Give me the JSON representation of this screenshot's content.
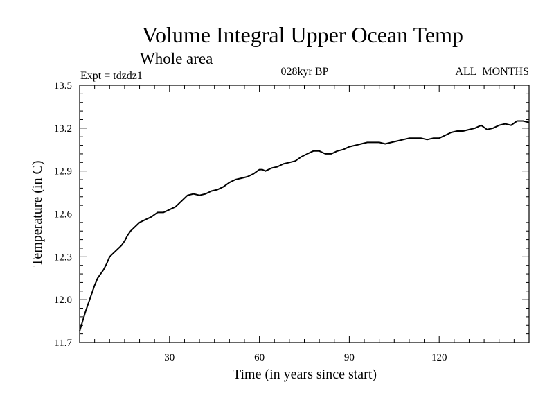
{
  "chart_data": {
    "type": "line",
    "title": "Volume Integral Upper Ocean Temp",
    "subtitle": "Whole area",
    "experiment": "Expt = tdzdz1",
    "period": "028kyr BP",
    "months": "ALL_MONTHS",
    "xlabel": "Time (in years since start)",
    "ylabel": "Temperature (in C)",
    "xlim": [
      0,
      150
    ],
    "ylim": [
      11.7,
      13.5
    ],
    "x_ticks": [
      30,
      60,
      90,
      120
    ],
    "x_tick_labels": [
      "30",
      "60",
      "90",
      "120"
    ],
    "y_ticks": [
      11.7,
      12.0,
      12.3,
      12.6,
      12.9,
      13.2,
      13.5
    ],
    "y_tick_labels": [
      "11.7",
      "12.0",
      "12.3",
      "12.6",
      "12.9",
      "13.2",
      "13.5"
    ],
    "grid": false,
    "series": [
      {
        "name": "temperature",
        "color": "#000000",
        "x": [
          0,
          1,
          2,
          3,
          4,
          5,
          6,
          7,
          8,
          9,
          10,
          11,
          12,
          13,
          14,
          15,
          16,
          17,
          18,
          19,
          20,
          22,
          24,
          26,
          28,
          30,
          32,
          34,
          36,
          38,
          40,
          42,
          44,
          46,
          48,
          50,
          52,
          54,
          56,
          58,
          60,
          61,
          62,
          64,
          66,
          68,
          70,
          72,
          74,
          76,
          78,
          80,
          82,
          84,
          86,
          88,
          90,
          92,
          94,
          96,
          98,
          100,
          102,
          104,
          106,
          108,
          110,
          112,
          114,
          116,
          118,
          120,
          122,
          124,
          126,
          128,
          130,
          132,
          134,
          136,
          138,
          140,
          142,
          144,
          146,
          148,
          150
        ],
        "values": [
          11.78,
          11.85,
          11.92,
          11.98,
          12.04,
          12.1,
          12.15,
          12.18,
          12.21,
          12.25,
          12.3,
          12.32,
          12.34,
          12.36,
          12.38,
          12.41,
          12.45,
          12.48,
          12.5,
          12.52,
          12.54,
          12.56,
          12.58,
          12.61,
          12.61,
          12.63,
          12.65,
          12.69,
          12.73,
          12.74,
          12.73,
          12.74,
          12.76,
          12.77,
          12.79,
          12.82,
          12.84,
          12.85,
          12.86,
          12.88,
          12.91,
          12.91,
          12.9,
          12.92,
          12.93,
          12.95,
          12.96,
          12.97,
          13.0,
          13.02,
          13.04,
          13.04,
          13.02,
          13.02,
          13.04,
          13.05,
          13.07,
          13.08,
          13.09,
          13.1,
          13.1,
          13.1,
          13.09,
          13.1,
          13.11,
          13.12,
          13.13,
          13.13,
          13.13,
          13.12,
          13.13,
          13.13,
          13.15,
          13.17,
          13.18,
          13.18,
          13.19,
          13.2,
          13.22,
          13.19,
          13.2,
          13.22,
          13.23,
          13.22,
          13.25,
          13.25,
          13.24
        ]
      }
    ]
  }
}
